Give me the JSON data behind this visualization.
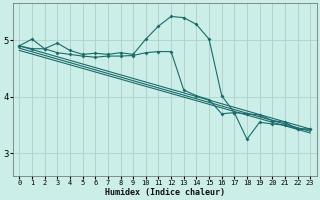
{
  "xlabel": "Humidex (Indice chaleur)",
  "bg_color": "#cceee8",
  "grid_color": "#aad8d0",
  "line_color": "#1a6b6b",
  "xlim": [
    -0.5,
    23.5
  ],
  "ylim": [
    2.6,
    5.65
  ],
  "yticks": [
    3,
    4,
    5
  ],
  "xticks": [
    0,
    1,
    2,
    3,
    4,
    5,
    6,
    7,
    8,
    9,
    10,
    11,
    12,
    13,
    14,
    15,
    16,
    17,
    18,
    19,
    20,
    21,
    22,
    23
  ],
  "line1_x": [
    0,
    1,
    2,
    3,
    4,
    5,
    6,
    7,
    8,
    9,
    10,
    11,
    12,
    13,
    14,
    15,
    16,
    17,
    18,
    19,
    20,
    21,
    22,
    23
  ],
  "line1_y": [
    4.9,
    5.02,
    4.85,
    4.95,
    4.82,
    4.75,
    4.77,
    4.75,
    4.78,
    4.75,
    5.02,
    5.25,
    5.42,
    5.4,
    5.28,
    5.02,
    4.02,
    3.72,
    3.7,
    3.68,
    3.58,
    3.55,
    3.43,
    3.43
  ],
  "line2_x": [
    0,
    1,
    2,
    3,
    4,
    5,
    6,
    7,
    8,
    9,
    10,
    11,
    12,
    13,
    14,
    15,
    16,
    17,
    18,
    19,
    20,
    21,
    22,
    23
  ],
  "line2_y": [
    4.9,
    4.85,
    4.85,
    4.78,
    4.75,
    4.72,
    4.7,
    4.72,
    4.72,
    4.73,
    4.78,
    4.8,
    4.8,
    4.12,
    4.02,
    3.95,
    3.7,
    3.72,
    3.25,
    3.55,
    3.52,
    3.5,
    3.43,
    3.43
  ],
  "line3_x": [
    0,
    23
  ],
  "line3_y": [
    4.9,
    3.43
  ],
  "line4_x": [
    0,
    23
  ],
  "line4_y": [
    4.86,
    3.39
  ],
  "line5_x": [
    0,
    23
  ],
  "line5_y": [
    4.82,
    3.36
  ]
}
